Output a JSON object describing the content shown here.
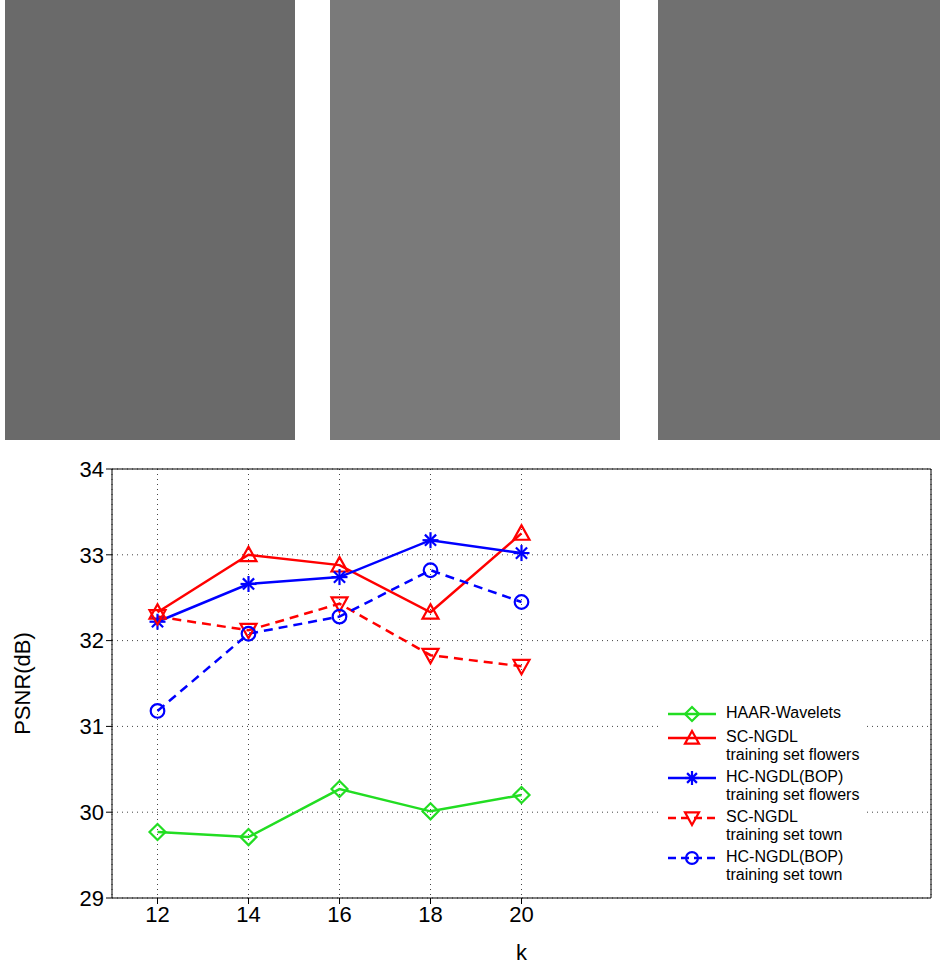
{
  "chart_data": {
    "type": "line",
    "xlabel": "k",
    "ylabel": "PSNR(dB)",
    "x": [
      12,
      14,
      16,
      18,
      20
    ],
    "xlim": [
      11,
      29
    ],
    "xticks": [
      12,
      14,
      16,
      18,
      20
    ],
    "ylim": [
      29,
      34
    ],
    "yticks": [
      29,
      30,
      31,
      32,
      33,
      34
    ],
    "grid": true,
    "legend": "lower right",
    "series": [
      {
        "name": "HAAR-Wavelets",
        "color": "#22dd22",
        "marker": "diamond",
        "line_style": "solid",
        "values": [
          29.77,
          29.71,
          30.27,
          30.01,
          30.2
        ]
      },
      {
        "name": "SC-NGDL training set flowers",
        "color": "#ff0000",
        "marker": "triangle-up",
        "line_style": "solid",
        "values": [
          32.33,
          33.0,
          32.88,
          32.33,
          33.25
        ]
      },
      {
        "name": "HC-NGDL(BOP) training set flowers",
        "color": "#0000ff",
        "marker": "star",
        "line_style": "solid",
        "values": [
          32.22,
          32.66,
          32.74,
          33.17,
          33.02
        ]
      },
      {
        "name": "SC-NGDL training set town",
        "color": "#ff0000",
        "marker": "triangle-down",
        "line_style": "dashed",
        "values": [
          32.28,
          32.12,
          32.43,
          31.83,
          31.7
        ]
      },
      {
        "name": "HC-NGDL(BOP) training set town",
        "color": "#0000ff",
        "marker": "circle",
        "line_style": "dashed",
        "values": [
          31.18,
          32.08,
          32.28,
          32.82,
          32.45
        ]
      }
    ]
  }
}
